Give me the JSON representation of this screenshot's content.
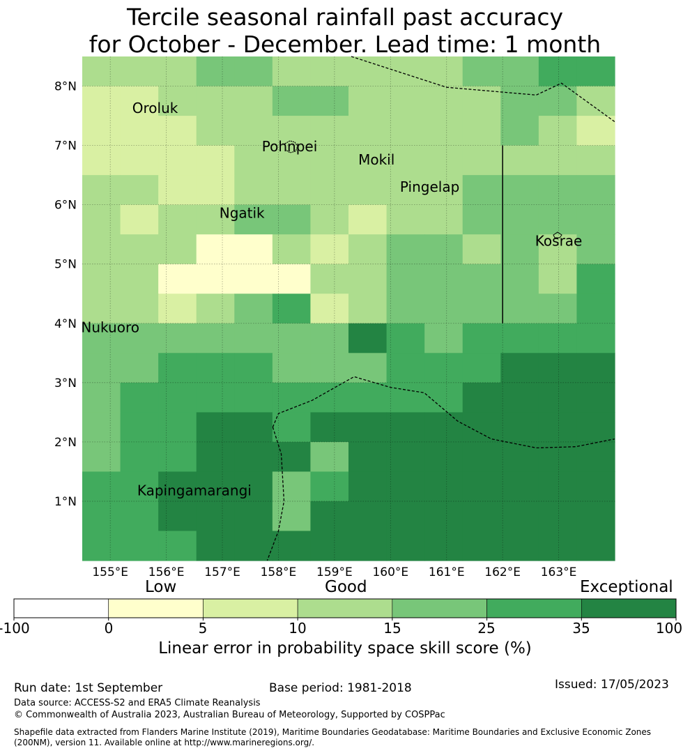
{
  "title": {
    "line1": "Tercile seasonal rainfall past accuracy",
    "line2": "for October - December. Lead time: 1 month"
  },
  "map": {
    "lon_range": [
      154.5,
      164.0
    ],
    "lat_range": [
      0.0,
      8.5
    ],
    "lon_ticks": [
      155,
      156,
      157,
      158,
      159,
      160,
      161,
      162,
      163
    ],
    "lon_tick_labels": [
      "155°E",
      "156°E",
      "157°E",
      "158°E",
      "159°E",
      "160°E",
      "161°E",
      "162°E",
      "163°E"
    ],
    "lat_ticks": [
      1,
      2,
      3,
      4,
      5,
      6,
      7,
      8
    ],
    "lat_tick_labels": [
      "1°N",
      "2°N",
      "3°N",
      "4°N",
      "5°N",
      "6°N",
      "7°N",
      "8°N"
    ],
    "grid": "dotted",
    "cell_size_deg": 0.833,
    "cell_category_rows_north_to_south": [
      "22233222223344",
      "11222332222332",
      "11122222222321",
      "11112222222222",
      "22112222223333",
      "21223321223333",
      "22200212332323",
      "22000022333324",
      "22123412333334",
      "33333335434444",
      "33444333444555",
      "34444444445555",
      "34455455555555",
      "34455535555555",
      "44555345555555",
      "44555355555555",
      "44455555555555"
    ],
    "places": [
      {
        "name": "Oroluk",
        "lon": 155.8,
        "lat": 7.55
      },
      {
        "name": "Pohnpei",
        "lon": 158.2,
        "lat": 6.9
      },
      {
        "name": "Mokil",
        "lon": 159.75,
        "lat": 6.68
      },
      {
        "name": "Pingelap",
        "lon": 160.7,
        "lat": 6.22
      },
      {
        "name": "Ngatik",
        "lon": 157.35,
        "lat": 5.78
      },
      {
        "name": "Kosrae",
        "lon": 163.0,
        "lat": 5.31
      },
      {
        "name": "Nukuoro",
        "lon": 155.0,
        "lat": 3.85
      },
      {
        "name": "Kapingamarangi",
        "lon": 156.5,
        "lat": 1.1
      }
    ],
    "eez_boundaries": [
      [
        [
          159.3,
          8.5
        ],
        [
          161.0,
          7.98
        ],
        [
          162.6,
          7.85
        ],
        [
          163.05,
          8.05
        ],
        [
          164.0,
          7.4
        ]
      ],
      [
        [
          157.9,
          2.25
        ],
        [
          158.0,
          2.48
        ],
        [
          158.6,
          2.7
        ],
        [
          159.35,
          3.1
        ],
        [
          160.0,
          2.92
        ],
        [
          160.6,
          2.83
        ],
        [
          161.2,
          2.35
        ],
        [
          161.8,
          2.05
        ],
        [
          162.6,
          1.9
        ],
        [
          163.3,
          1.92
        ],
        [
          164.0,
          2.05
        ]
      ],
      [
        [
          157.9,
          2.25
        ],
        [
          158.05,
          1.8
        ],
        [
          158.1,
          1.0
        ],
        [
          158.0,
          0.5
        ],
        [
          157.8,
          0.0
        ]
      ]
    ],
    "meridian_line": {
      "lon": 162.0,
      "lat_from": 4.0,
      "lat_to": 7.0
    }
  },
  "colorbar": {
    "top_labels": [
      "Low",
      "Good",
      "Exceptional"
    ],
    "tick_labels": [
      "-100",
      "0",
      "5",
      "10",
      "15",
      "25",
      "35",
      "100"
    ],
    "category_colors": [
      "#ffffff",
      "#ffffcc",
      "#d9f0a3",
      "#addd8e",
      "#78c679",
      "#41ab5d",
      "#238443"
    ],
    "axis_label": "Linear error in probability space skill score (%)"
  },
  "footer": {
    "run_date": "Run date: 1st September",
    "base_period": "Base period: 1981-2018",
    "issued": "Issued: 17/05/2023",
    "data_source": "Data source: ACCESS-S2 and ERA5 Climate Reanalysis",
    "copyright": "© Commonwealth of Australia 2023, Australian Bureau of Meteorology, Supported by COSPPac",
    "shapefile_line1": "Shapefile data extracted from Flanders Marine Institute (2019), Maritime Boundaries Geodatabase: Maritime Boundaries and Exclusive Economic Zones",
    "shapefile_line2": "(200NM), version 11. Available online at http://www.marineregions.org/."
  }
}
